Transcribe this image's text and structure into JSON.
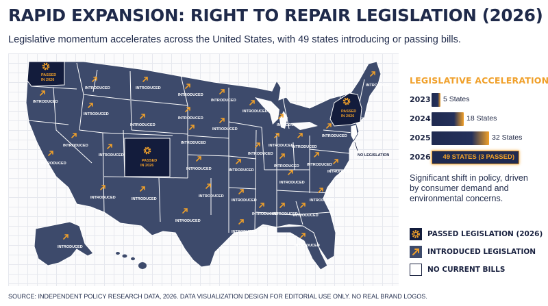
{
  "title": "RAPID EXPANSION: RIGHT TO REPAIR LEGISLATION (2026)",
  "subtitle": "Legislative momentum accelerates across the United States, with 49 states introducing or passing bills.",
  "colors": {
    "passed": "#131c3c",
    "introduced": "#3d4a6b",
    "accent": "#f0a02a",
    "border": "#ffffff"
  },
  "map": {
    "introduced_label": "INTRODUCED",
    "passed_label_line1": "PASSED",
    "passed_label_line2": "IN 2026",
    "no_legislation_label": "NO LEGISLATION",
    "passed_states": [
      "Washington",
      "Colorado",
      "New York"
    ],
    "no_legislation_states": [
      "New Jersey"
    ]
  },
  "panel": {
    "title": "LEGISLATIVE ACCELERATION",
    "bars": [
      {
        "year": "2023",
        "value": 5,
        "label": "5 States"
      },
      {
        "year": "2024",
        "value": 18,
        "label": "18 States"
      },
      {
        "year": "2025",
        "value": 32,
        "label": "32 States"
      },
      {
        "year": "2026",
        "value": 49,
        "label": "49 STATES (3 PASSED)"
      }
    ],
    "note": "Significant shift in policy, driven by consumer demand and environmental concerns."
  },
  "legend": {
    "passed": "PASSED LEGISLATION (2026)",
    "introduced": "INTRODUCED LEGISLATION",
    "none": "NO CURRENT BILLS"
  },
  "icons": {
    "passed": "gear-icon",
    "introduced": "arrow-up-right-icon"
  },
  "source": "SOURCE: INDEPENDENT POLICY RESEARCH DATA, 2026. DATA VISUALIZATION DESIGN FOR EDITORIAL USE ONLY. NO REAL BRAND LOGOS."
}
